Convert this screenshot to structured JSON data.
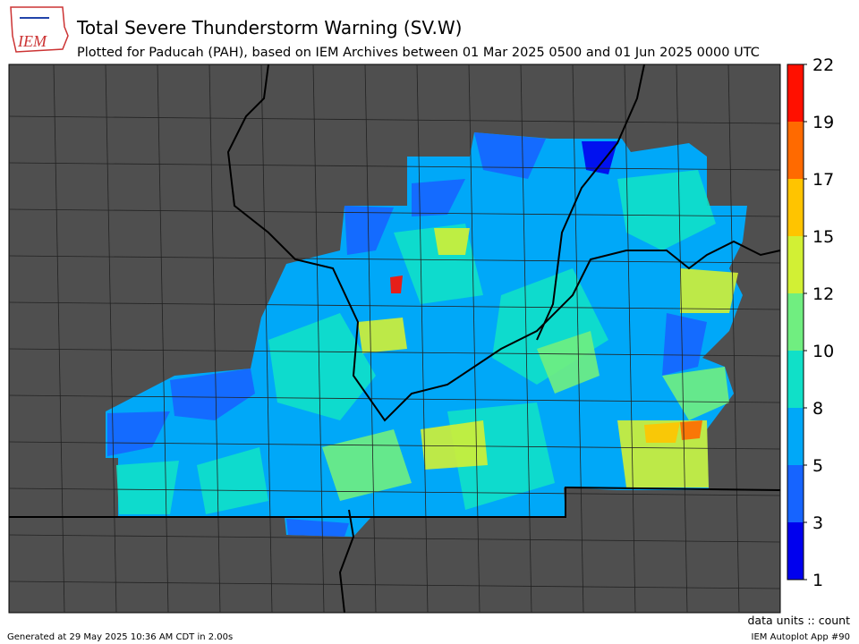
{
  "header": {
    "logo": "IEM",
    "title": "Total Severe Thunderstorm Warning (SV.W)",
    "subtitle": "Plotted for Paducah (PAH), based on IEM Archives  between 01 Mar 2025 0500 and 01 Jun 2025 0000 UTC"
  },
  "colorbar": {
    "ticks": [
      1,
      3,
      5,
      8,
      10,
      12,
      15,
      17,
      19,
      22
    ],
    "colors": [
      "#0000ee",
      "#1664ff",
      "#00a8f8",
      "#10e0c8",
      "#70ee80",
      "#d2f034",
      "#ffc400",
      "#ff6a00",
      "#ff1000"
    ]
  },
  "footer": {
    "units": "data units :: count",
    "generated": "Generated at 29 May 2025 10:36 AM CDT in 2.00s",
    "app": "IEM Autoplot App #90"
  }
}
